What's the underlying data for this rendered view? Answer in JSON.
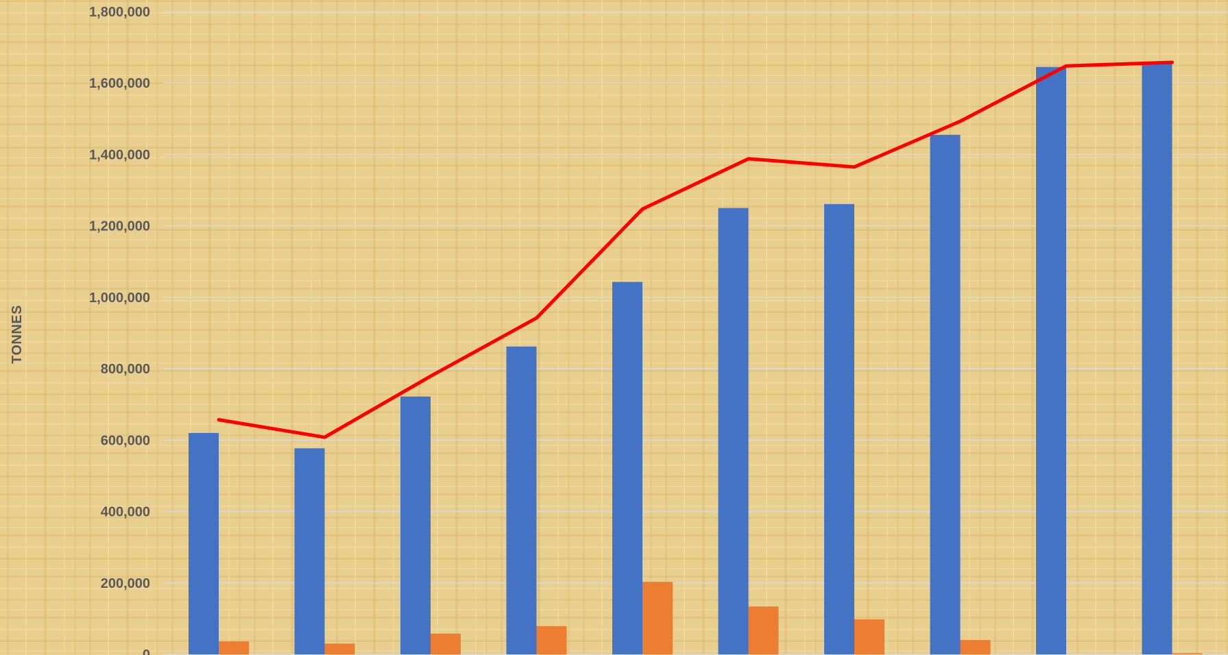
{
  "chart_data": {
    "type": "bar",
    "title": "",
    "xlabel": "",
    "ylabel": "TONNES",
    "ylim": [
      0,
      1800000
    ],
    "yticks": [
      0,
      200000,
      400000,
      600000,
      800000,
      1000000,
      1200000,
      1400000,
      1600000,
      1800000
    ],
    "ytick_labels": [
      "0",
      "200,000",
      "400,000",
      "600,000",
      "800,000",
      "1,000,000",
      "1,200,000",
      "1,400,000",
      "1,600,000",
      "1,800,000"
    ],
    "grid": true,
    "categories": [
      "",
      "",
      "",
      "",
      "",
      "",
      "",
      "",
      "",
      ""
    ],
    "series": [
      {
        "type": "bar",
        "color": "#4472c4",
        "values": [
          620000,
          577000,
          722000,
          862000,
          1043000,
          1250000,
          1261000,
          1455000,
          1645000,
          1658000
        ]
      },
      {
        "type": "bar",
        "color": "#ed7d31",
        "values": [
          36000,
          30000,
          58000,
          79000,
          203000,
          134000,
          98000,
          40000,
          0,
          3000
        ]
      },
      {
        "type": "line",
        "color": "#ff0000",
        "values": [
          657000,
          608000,
          779000,
          942000,
          1247000,
          1388000,
          1365000,
          1493000,
          1648000,
          1658000
        ]
      }
    ],
    "colors": {
      "background": "#e9cf8f",
      "gridline": "#d9d9d9",
      "tick_text": "#595959"
    }
  }
}
